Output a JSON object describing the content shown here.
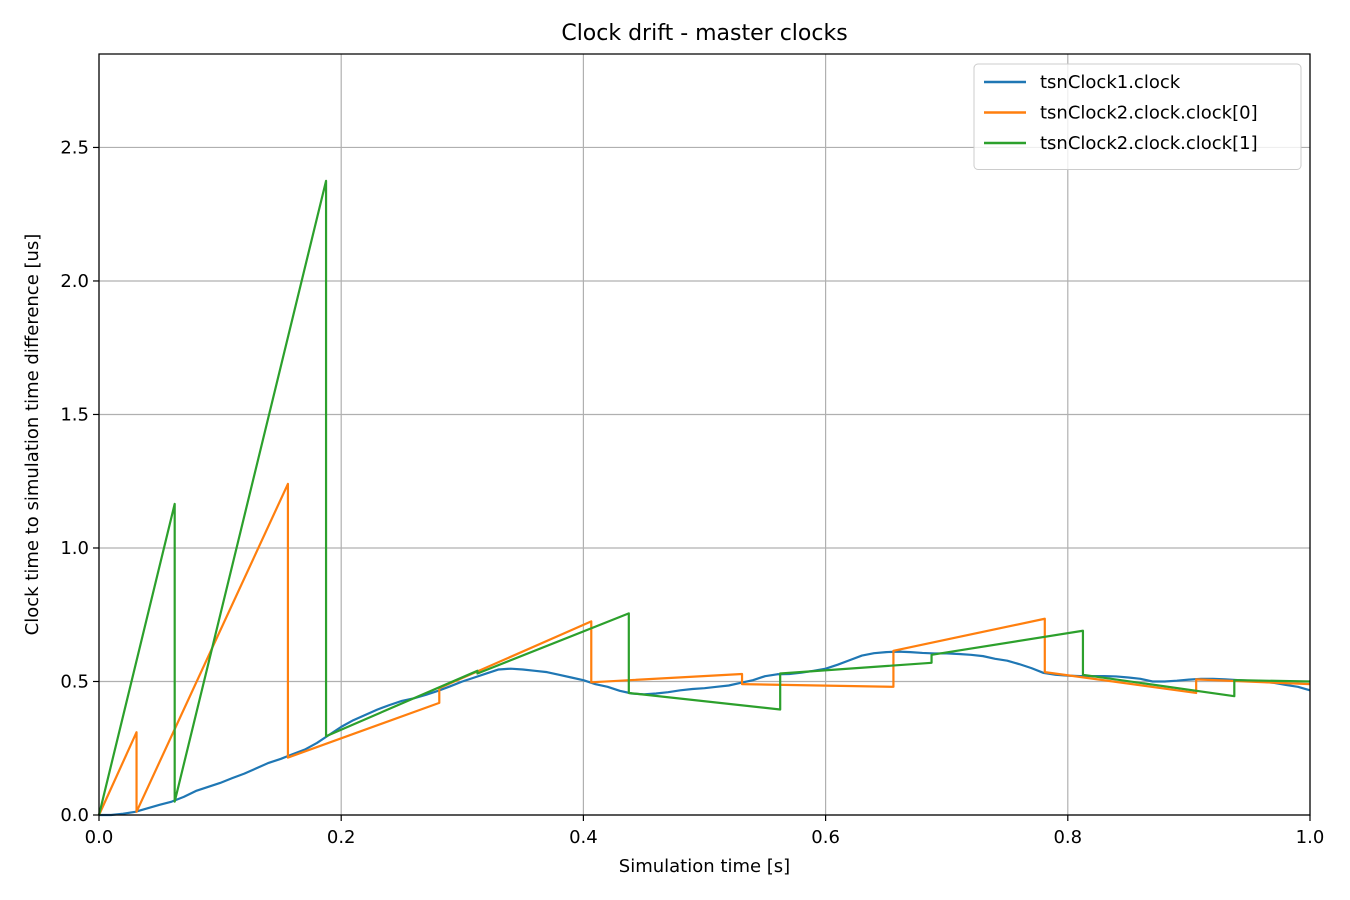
{
  "chart_data": {
    "type": "line",
    "title": "Clock drift - master clocks",
    "xlabel": "Simulation time [s]",
    "ylabel": "Clock time to simulation time difference [us]",
    "xlim": [
      0.0,
      1.0
    ],
    "ylim": [
      0.0,
      2.85
    ],
    "xticks": [
      0.0,
      0.2,
      0.4,
      0.6,
      0.8,
      1.0
    ],
    "xtick_labels": [
      "0.0",
      "0.2",
      "0.4",
      "0.6",
      "0.8",
      "1.0"
    ],
    "yticks": [
      0.0,
      0.5,
      1.0,
      1.5,
      2.0,
      2.5
    ],
    "ytick_labels": [
      "0.0",
      "0.5",
      "1.0",
      "1.5",
      "2.0",
      "2.5"
    ],
    "grid": true,
    "legend_position": "top-right",
    "series": [
      {
        "name": "tsnClock1.clock",
        "color": "#1f77b4",
        "points": [
          [
            0.0,
            0.0
          ],
          [
            0.01,
            0.0
          ],
          [
            0.02,
            0.005
          ],
          [
            0.03,
            0.012
          ],
          [
            0.04,
            0.025
          ],
          [
            0.05,
            0.038
          ],
          [
            0.06,
            0.05
          ],
          [
            0.07,
            0.068
          ],
          [
            0.08,
            0.09
          ],
          [
            0.09,
            0.105
          ],
          [
            0.1,
            0.12
          ],
          [
            0.11,
            0.138
          ],
          [
            0.12,
            0.155
          ],
          [
            0.13,
            0.175
          ],
          [
            0.14,
            0.195
          ],
          [
            0.15,
            0.21
          ],
          [
            0.16,
            0.228
          ],
          [
            0.17,
            0.245
          ],
          [
            0.18,
            0.27
          ],
          [
            0.19,
            0.3
          ],
          [
            0.2,
            0.33
          ],
          [
            0.21,
            0.355
          ],
          [
            0.22,
            0.375
          ],
          [
            0.23,
            0.395
          ],
          [
            0.24,
            0.412
          ],
          [
            0.25,
            0.427
          ],
          [
            0.26,
            0.437
          ],
          [
            0.27,
            0.45
          ],
          [
            0.28,
            0.465
          ],
          [
            0.29,
            0.482
          ],
          [
            0.3,
            0.5
          ],
          [
            0.31,
            0.515
          ],
          [
            0.32,
            0.53
          ],
          [
            0.33,
            0.545
          ],
          [
            0.34,
            0.548
          ],
          [
            0.35,
            0.545
          ],
          [
            0.36,
            0.54
          ],
          [
            0.37,
            0.535
          ],
          [
            0.38,
            0.525
          ],
          [
            0.39,
            0.515
          ],
          [
            0.4,
            0.505
          ],
          [
            0.41,
            0.49
          ],
          [
            0.42,
            0.48
          ],
          [
            0.43,
            0.465
          ],
          [
            0.44,
            0.455
          ],
          [
            0.45,
            0.452
          ],
          [
            0.46,
            0.455
          ],
          [
            0.47,
            0.46
          ],
          [
            0.48,
            0.467
          ],
          [
            0.49,
            0.472
          ],
          [
            0.5,
            0.475
          ],
          [
            0.51,
            0.48
          ],
          [
            0.52,
            0.485
          ],
          [
            0.53,
            0.495
          ],
          [
            0.54,
            0.505
          ],
          [
            0.55,
            0.52
          ],
          [
            0.56,
            0.527
          ],
          [
            0.57,
            0.528
          ],
          [
            0.58,
            0.533
          ],
          [
            0.59,
            0.54
          ],
          [
            0.6,
            0.548
          ],
          [
            0.61,
            0.563
          ],
          [
            0.62,
            0.58
          ],
          [
            0.63,
            0.597
          ],
          [
            0.64,
            0.606
          ],
          [
            0.65,
            0.61
          ],
          [
            0.66,
            0.612
          ],
          [
            0.67,
            0.61
          ],
          [
            0.68,
            0.607
          ],
          [
            0.69,
            0.605
          ],
          [
            0.7,
            0.605
          ],
          [
            0.71,
            0.603
          ],
          [
            0.72,
            0.6
          ],
          [
            0.73,
            0.595
          ],
          [
            0.74,
            0.585
          ],
          [
            0.75,
            0.578
          ],
          [
            0.76,
            0.565
          ],
          [
            0.77,
            0.55
          ],
          [
            0.78,
            0.532
          ],
          [
            0.79,
            0.525
          ],
          [
            0.8,
            0.522
          ],
          [
            0.81,
            0.52
          ],
          [
            0.82,
            0.52
          ],
          [
            0.83,
            0.52
          ],
          [
            0.84,
            0.519
          ],
          [
            0.85,
            0.515
          ],
          [
            0.86,
            0.51
          ],
          [
            0.87,
            0.5
          ],
          [
            0.88,
            0.5
          ],
          [
            0.89,
            0.503
          ],
          [
            0.9,
            0.507
          ],
          [
            0.91,
            0.51
          ],
          [
            0.92,
            0.51
          ],
          [
            0.93,
            0.508
          ],
          [
            0.94,
            0.505
          ],
          [
            0.95,
            0.503
          ],
          [
            0.96,
            0.5
          ],
          [
            0.97,
            0.495
          ],
          [
            0.98,
            0.487
          ],
          [
            0.99,
            0.48
          ],
          [
            1.0,
            0.467
          ]
        ]
      },
      {
        "name": "tsnClock2.clock.clock[0]",
        "color": "#ff7f0e",
        "points": [
          [
            0.0,
            0.0
          ],
          [
            0.031,
            0.31
          ],
          [
            0.031,
            0.012
          ],
          [
            0.156,
            1.24
          ],
          [
            0.156,
            0.215
          ],
          [
            0.281,
            0.42
          ],
          [
            0.281,
            0.475
          ],
          [
            0.4065,
            0.725
          ],
          [
            0.4065,
            0.497
          ],
          [
            0.531,
            0.528
          ],
          [
            0.531,
            0.49
          ],
          [
            0.656,
            0.48
          ],
          [
            0.656,
            0.615
          ],
          [
            0.781,
            0.735
          ],
          [
            0.781,
            0.535
          ],
          [
            0.906,
            0.457
          ],
          [
            0.906,
            0.508
          ],
          [
            1.0,
            0.49
          ]
        ]
      },
      {
        "name": "tsnClock2.clock.clock[1]",
        "color": "#2ca02c",
        "points": [
          [
            0.0,
            0.0
          ],
          [
            0.0625,
            1.165
          ],
          [
            0.0625,
            0.05
          ],
          [
            0.1875,
            2.375
          ],
          [
            0.1875,
            0.295
          ],
          [
            0.3125,
            0.54
          ],
          [
            0.3125,
            0.53
          ],
          [
            0.4375,
            0.755
          ],
          [
            0.4375,
            0.457
          ],
          [
            0.5625,
            0.395
          ],
          [
            0.5625,
            0.53
          ],
          [
            0.6875,
            0.57
          ],
          [
            0.6875,
            0.6
          ],
          [
            0.8125,
            0.69
          ],
          [
            0.8125,
            0.525
          ],
          [
            0.9375,
            0.445
          ],
          [
            0.9375,
            0.505
          ],
          [
            1.0,
            0.5
          ]
        ]
      }
    ]
  }
}
